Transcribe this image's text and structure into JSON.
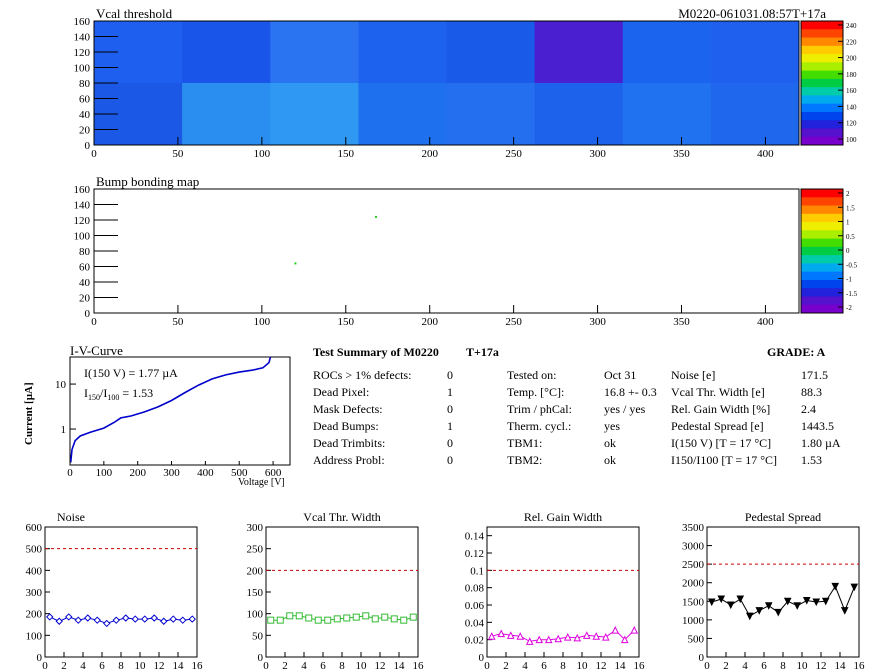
{
  "header": {
    "run_id": "M0220-061031.08:57T+17a"
  },
  "vcal_map": {
    "title": "Vcal threshold",
    "xticks": [
      "0",
      "50",
      "100",
      "150",
      "200",
      "250",
      "300",
      "350",
      "400"
    ],
    "yticks": [
      "0",
      "20",
      "40",
      "60",
      "80",
      "100",
      "120",
      "140",
      "160"
    ],
    "colorbar": [
      "240",
      "220",
      "200",
      "180",
      "160",
      "140",
      "120",
      "100"
    ]
  },
  "bump_map": {
    "title": "Bump bonding map",
    "xticks": [
      "0",
      "50",
      "100",
      "150",
      "200",
      "250",
      "300",
      "350",
      "400"
    ],
    "yticks": [
      "0",
      "20",
      "40",
      "60",
      "80",
      "100",
      "120",
      "140",
      "160"
    ],
    "colorbar": [
      "2",
      "1.5",
      "1",
      "0.5",
      "0",
      "-0.5",
      "-1",
      "-1.5",
      "-2"
    ],
    "points": [
      {
        "x": 168,
        "y": 124
      },
      {
        "x": 120,
        "y": 64
      }
    ]
  },
  "iv_curve": {
    "title": "I-V-Curve",
    "ylabel": "Current [µA]",
    "xlabel": "Voltage [V]",
    "xticks": [
      "0",
      "100",
      "200",
      "300",
      "400",
      "500",
      "600"
    ],
    "yticks": [
      "1",
      "10"
    ],
    "annot1": "I(150 V) = 1.77 µA",
    "annot2_pre": "I",
    "annot2_sub1": "150",
    "annot2_mid": "/I",
    "annot2_sub2": "100",
    "annot2_post": " =  1.53"
  },
  "summary": {
    "title": "Test Summary of M0220",
    "tag": "T+17a",
    "grade": "GRADE:  A",
    "left_rows": [
      {
        "label": "ROCs > 1% defects:",
        "value": "0"
      },
      {
        "label": "Dead Pixel:",
        "value": "1"
      },
      {
        "label": "Mask Defects:",
        "value": "0"
      },
      {
        "label": "Dead Bumps:",
        "value": "1"
      },
      {
        "label": "Dead Trimbits:",
        "value": "0"
      },
      {
        "label": "Address Probl:",
        "value": "0"
      }
    ],
    "mid_rows": [
      {
        "label": "Tested on:",
        "value": "Oct 31"
      },
      {
        "label": "Temp. [°C]:",
        "value": "16.8 +- 0.3"
      },
      {
        "label": "Trim / phCal:",
        "value": "yes / yes"
      },
      {
        "label": "Therm. cycl.:",
        "value": "yes"
      },
      {
        "label": "TBM1:",
        "value": "ok"
      },
      {
        "label": "TBM2:",
        "value": "ok"
      }
    ],
    "right_rows": [
      {
        "label": "Noise [e]",
        "value": "171.5"
      },
      {
        "label": "Vcal Thr. Width [e]",
        "value": "88.3"
      },
      {
        "label": "Rel. Gain Width [%]",
        "value": "2.4"
      },
      {
        "label": "Pedestal Spread [e]",
        "value": "1443.5"
      },
      {
        "label": "I(150 V) [T = 17 °C]",
        "value": "1.80 µA"
      },
      {
        "label": "I150/I100  [T = 17 °C]",
        "value": "1.53"
      }
    ]
  },
  "chart_data": [
    {
      "type": "line",
      "title": "Noise",
      "x": [
        0,
        1,
        2,
        3,
        4,
        5,
        6,
        7,
        8,
        9,
        10,
        11,
        12,
        13,
        14,
        15
      ],
      "values": [
        185,
        165,
        185,
        170,
        180,
        170,
        155,
        170,
        180,
        175,
        175,
        180,
        165,
        175,
        170,
        175
      ],
      "xlim": [
        0,
        16
      ],
      "ylim": [
        0,
        600
      ],
      "yticks": [
        "0",
        "100",
        "200",
        "300",
        "400",
        "500",
        "600"
      ],
      "xticks": [
        "0",
        "2",
        "4",
        "6",
        "8",
        "10",
        "12",
        "14",
        "16"
      ],
      "cut": 500,
      "color": "#0000cc",
      "marker": "diamond"
    },
    {
      "type": "line",
      "title": "Vcal Thr. Width",
      "x": [
        0,
        1,
        2,
        3,
        4,
        5,
        6,
        7,
        8,
        9,
        10,
        11,
        12,
        13,
        14,
        15
      ],
      "values": [
        85,
        85,
        95,
        95,
        90,
        85,
        85,
        88,
        90,
        92,
        95,
        88,
        92,
        88,
        85,
        92
      ],
      "xlim": [
        0,
        16
      ],
      "ylim": [
        0,
        300
      ],
      "yticks": [
        "0",
        "50",
        "100",
        "150",
        "200",
        "250",
        "300"
      ],
      "xticks": [
        "0",
        "2",
        "4",
        "6",
        "8",
        "10",
        "12",
        "14",
        "16"
      ],
      "cut": 200,
      "color": "#33bb33",
      "marker": "square"
    },
    {
      "type": "line",
      "title": "Rel. Gain Width",
      "x": [
        0,
        1,
        2,
        3,
        4,
        5,
        6,
        7,
        8,
        9,
        10,
        11,
        12,
        13,
        14,
        15
      ],
      "values": [
        0.024,
        0.027,
        0.025,
        0.024,
        0.018,
        0.02,
        0.02,
        0.021,
        0.023,
        0.022,
        0.025,
        0.024,
        0.023,
        0.031,
        0.02,
        0.031
      ],
      "xlim": [
        0,
        16
      ],
      "ylim": [
        0,
        0.15
      ],
      "yticks": [
        "0",
        "0.02",
        "0.04",
        "0.06",
        "0.08",
        "0.1",
        "0.12",
        "0.14"
      ],
      "xticks": [
        "0",
        "2",
        "4",
        "6",
        "8",
        "10",
        "12",
        "14",
        "16"
      ],
      "cut": 0.1,
      "color": "#dd00dd",
      "marker": "triangle"
    },
    {
      "type": "line",
      "title": "Pedestal Spread",
      "x": [
        0,
        1,
        2,
        3,
        4,
        5,
        6,
        7,
        8,
        9,
        10,
        11,
        12,
        13,
        14,
        15
      ],
      "values": [
        1480,
        1560,
        1400,
        1560,
        1100,
        1250,
        1380,
        1200,
        1500,
        1380,
        1520,
        1480,
        1500,
        1900,
        1250,
        1880
      ],
      "xlim": [
        0,
        16
      ],
      "ylim": [
        0,
        3500
      ],
      "yticks": [
        "0",
        "500",
        "1000",
        "1500",
        "2000",
        "2500",
        "3000",
        "3500"
      ],
      "xticks": [
        "0",
        "2",
        "4",
        "6",
        "8",
        "10",
        "12",
        "14",
        "16"
      ],
      "cut": 2500,
      "color": "#000000",
      "marker": "triangle-down"
    }
  ],
  "colors": {
    "map_blue": "#1a4fd6",
    "cut_line": "#cc0000"
  }
}
